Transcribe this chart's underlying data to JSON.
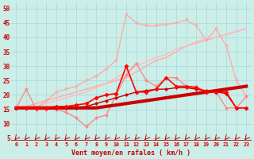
{
  "background_color": "#cceee8",
  "grid_color": "#aadddd",
  "x_values": [
    0,
    1,
    2,
    3,
    4,
    5,
    6,
    7,
    8,
    9,
    10,
    11,
    12,
    13,
    14,
    15,
    16,
    17,
    18,
    19,
    20,
    21,
    22,
    23
  ],
  "xlabel": "Vent moyen/en rafales ( km/h )",
  "ylabel_ticks": [
    5,
    10,
    15,
    20,
    25,
    30,
    35,
    40,
    45,
    50
  ],
  "ylim": [
    4,
    52
  ],
  "xlim": [
    -0.5,
    23.5
  ],
  "line_dark_thick": {
    "y": [
      15.5,
      15.5,
      15.5,
      15.5,
      15.5,
      15.5,
      15.5,
      15.5,
      15.5,
      16,
      16.5,
      17,
      17.5,
      18,
      18.5,
      19,
      19.5,
      20,
      20.5,
      21,
      21.5,
      22,
      22.5,
      23
    ],
    "color": "#cc0000",
    "lw": 3.0,
    "marker": null,
    "zorder": 5
  },
  "line_dark_markers": {
    "y": [
      15.5,
      15.5,
      15.5,
      15.5,
      15.5,
      15.5,
      15.5,
      16,
      17,
      18,
      19,
      20,
      21,
      21.5,
      22,
      22,
      22.5,
      22.5,
      22,
      21.5,
      21,
      20.5,
      15.5,
      15.5
    ],
    "color": "#cc0000",
    "lw": 1.0,
    "marker": "D",
    "ms": 2.0,
    "zorder": 5
  },
  "line_bright_red_markers": {
    "y": [
      15.5,
      15.5,
      15.5,
      15.5,
      16,
      16,
      16.5,
      17,
      19,
      20,
      20.5,
      30,
      21,
      21,
      22,
      26,
      23,
      23,
      22.5,
      21,
      21,
      21,
      15.5,
      15.5
    ],
    "color": "#ff0000",
    "lw": 1.2,
    "marker": "D",
    "ms": 2.5,
    "zorder": 6
  },
  "line_pink_markers": {
    "y": [
      15.5,
      22,
      15,
      15,
      15,
      14,
      12,
      9,
      12,
      13,
      20,
      27,
      31,
      25,
      23,
      26,
      26,
      23,
      23,
      21,
      21,
      15.5,
      15.5,
      19.5
    ],
    "color": "#ff8888",
    "lw": 1.0,
    "marker": "D",
    "ms": 2.0,
    "zorder": 4
  },
  "line_light_straight": {
    "y": [
      15.5,
      16,
      17,
      18,
      19,
      20,
      21,
      22,
      23,
      24,
      25,
      26,
      28,
      30,
      32,
      33,
      35,
      37,
      38,
      39,
      40,
      41,
      42,
      43
    ],
    "color": "#ffaaaa",
    "lw": 1.0,
    "marker": null,
    "zorder": 3
  },
  "line_light_straight2": {
    "y": [
      15.5,
      15.5,
      16,
      17,
      18,
      19,
      20,
      21,
      22.5,
      24,
      26,
      28,
      30,
      31.5,
      33,
      34,
      36,
      37,
      38.5,
      39.5,
      40,
      41,
      42,
      43
    ],
    "color": "#ffbbbb",
    "lw": 1.0,
    "marker": null,
    "zorder": 3
  },
  "line_light_jagged": {
    "y": [
      15.5,
      15.5,
      15.5,
      18,
      21,
      22,
      23,
      25,
      26.5,
      29,
      32,
      48,
      45,
      44,
      44,
      44.5,
      45,
      46,
      44,
      39,
      43,
      37,
      25,
      19.5
    ],
    "color": "#ffaaaa",
    "lw": 1.0,
    "marker": "v",
    "ms": 2.5,
    "zorder": 4
  }
}
